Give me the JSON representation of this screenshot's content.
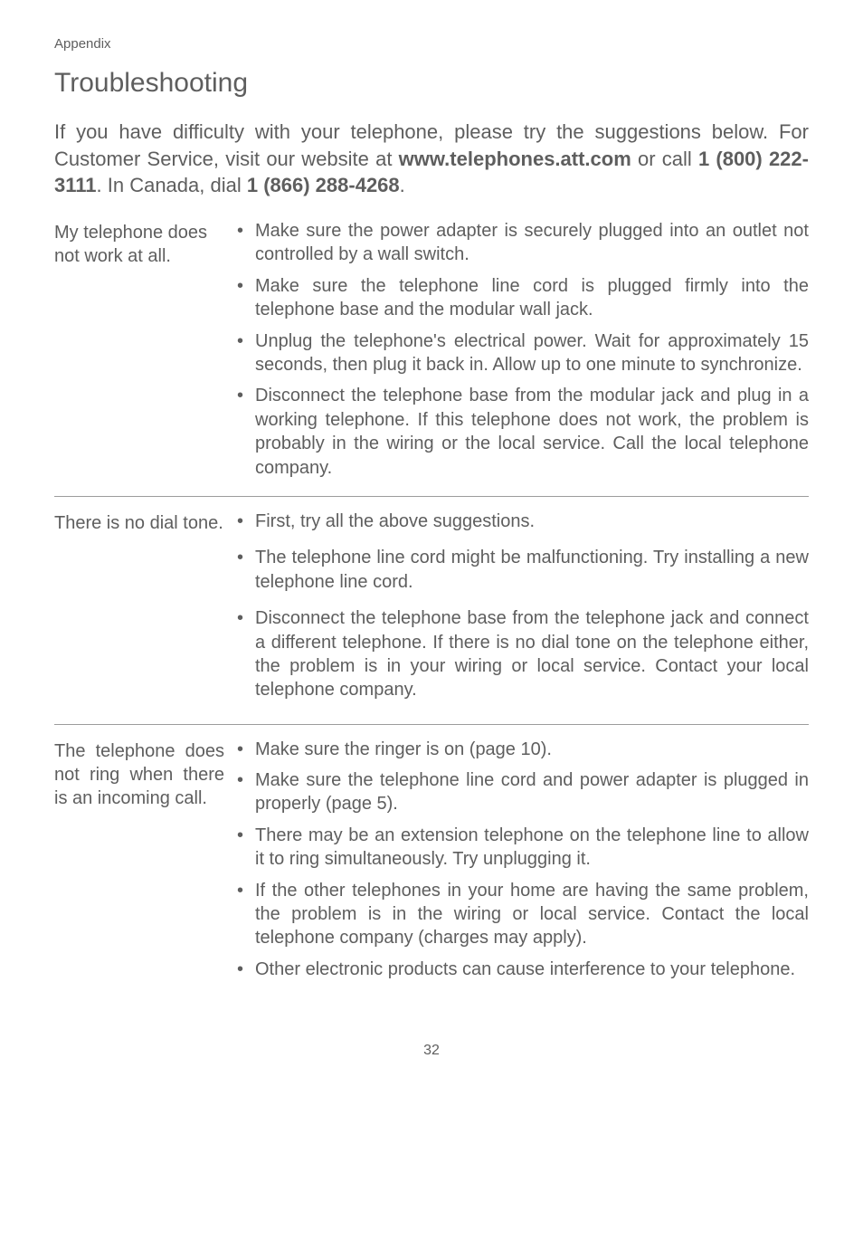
{
  "breadcrumb": "Appendix",
  "title": "Troubleshooting",
  "intro_parts": {
    "t1": "If you have difficulty with your telephone, please try the sug­gestions below. For Customer Service, visit our website at ",
    "b1": "www.telephones.att.com",
    "t2": " or call ",
    "b2": "1 (800) 222-3111",
    "t3": ". In Canada, dial ",
    "b3": "1 (866) 288-4268",
    "t4": "."
  },
  "sections": [
    {
      "topic": "My telephone does not work at all.",
      "items": [
        "Make sure the power adapter is securely plugged into an outlet not controlled by a wall switch.",
        "Make sure the telephone line cord is plugged firmly into the telephone base and the modular wall jack.",
        "Unplug the telephone's electrical power. Wait for approximately 15 seconds, then plug it back in. Allow up to one minute to synchronize.",
        "Disconnect the telephone base from the modular jack and plug in a working telephone. If this telephone does not work, the problem is probably in the wiring or the local service. Call the local telephone company."
      ]
    },
    {
      "topic": "There is no dial tone.",
      "items": [
        "First, try all the above suggestions.",
        "The telephone line cord might be malfunctioning. Try install­ing a new telephone line cord.",
        "Disconnect the telephone base from the telephone jack and connect a different telephone. If there is no dial tone on the telephone either, the problem is in your wiring or local service. Contact your local telephone company."
      ],
      "spaced": true
    },
    {
      "topic": "The telephone does not ring when there is an incoming call.",
      "topic_justify": true,
      "items": [
        "Make sure the ringer is on (page 10).",
        "Make sure the telephone line cord and power adapter is plugged in properly (page 5).",
        "There may be an extension telephone on the telephone line to allow it to ring simultaneously. Try unplugging it.",
        "If the other telephones in your home are having the same problem, the problem is in the wiring or local service. Contact the local telephone company (charges may apply).",
        "Other electronic products can cause interference to your telephone."
      ]
    }
  ],
  "page_number": "32"
}
